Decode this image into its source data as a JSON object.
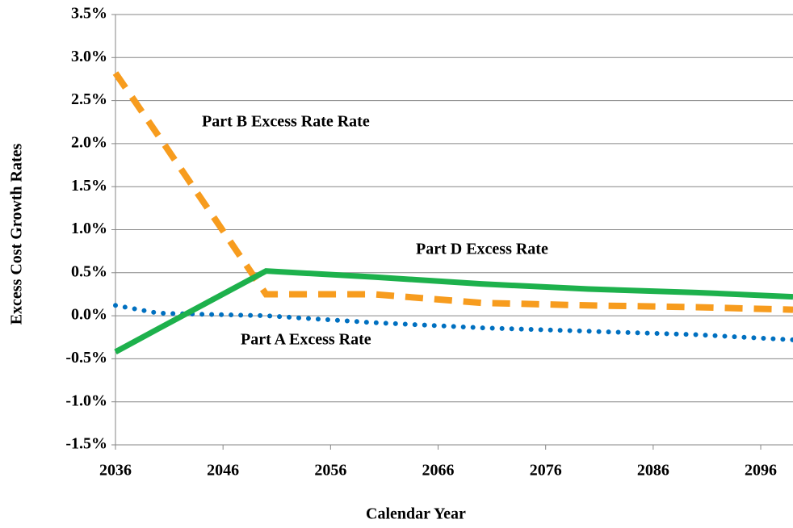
{
  "chart_data": {
    "type": "line",
    "x_label": "Calendar Year",
    "y_label": "Excess Cost Growth Rates",
    "x": [
      2036,
      2040,
      2050,
      2060,
      2070,
      2080,
      2090,
      2099
    ],
    "series": [
      {
        "name": "Part A Excess Rate",
        "color": "#0070c0",
        "style": "dotted",
        "values": [
          0.12,
          0.03,
          0.0,
          -0.08,
          -0.14,
          -0.18,
          -0.22,
          -0.28
        ]
      },
      {
        "name": "Part B Excess Rate Rate",
        "color": "#f79c1e",
        "style": "dashed",
        "values": [
          2.82,
          2.09,
          0.25,
          0.25,
          0.15,
          0.12,
          0.1,
          0.07
        ]
      },
      {
        "name": "Part D Excess Rate",
        "color": "#1db14c",
        "style": "solid",
        "values": [
          -0.42,
          -0.15,
          0.52,
          0.45,
          0.37,
          0.31,
          0.27,
          0.22
        ]
      }
    ],
    "xlim": [
      2036,
      2099
    ],
    "xticks": [
      2036,
      2046,
      2056,
      2066,
      2076,
      2086,
      2096
    ],
    "ylim": [
      -1.5,
      3.5
    ],
    "yticks": [
      {
        "value": -1.5,
        "label": "-1.5%"
      },
      {
        "value": -1.0,
        "label": "-1.0%"
      },
      {
        "value": -0.5,
        "label": "-0.5%"
      },
      {
        "value": 0.0,
        "label": "0.0%"
      },
      {
        "value": 0.5,
        "label": "0.5%"
      },
      {
        "value": 1.0,
        "label": "1.0%"
      },
      {
        "value": 1.5,
        "label": "1.5%"
      },
      {
        "value": 2.0,
        "label": "2.0%"
      },
      {
        "value": 2.5,
        "label": "2.5%"
      },
      {
        "value": 3.0,
        "label": "3.0%"
      },
      {
        "value": 3.5,
        "label": "3.5%"
      }
    ],
    "grid": true
  }
}
